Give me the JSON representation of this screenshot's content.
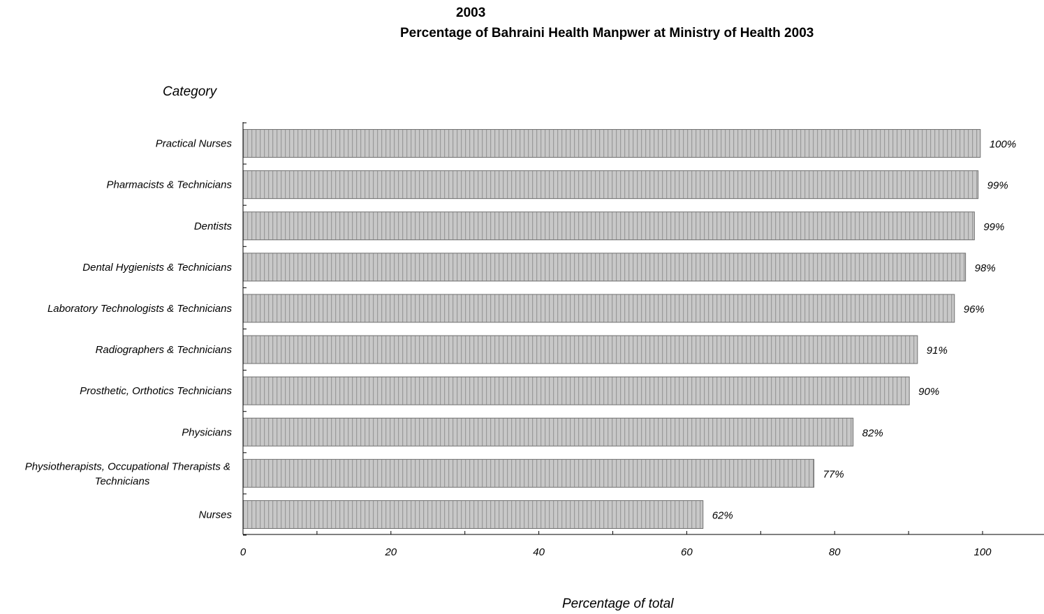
{
  "chart_data": {
    "type": "bar",
    "orientation": "horizontal",
    "year_label": "2003",
    "title": "Percentage of Bahraini Health Manpwer at Ministry of Health 2003",
    "ylabel": "Category",
    "xlabel": "Percentage of total",
    "xlim": [
      0,
      108
    ],
    "x_ticks": [
      0,
      20,
      40,
      60,
      80,
      100
    ],
    "categories": [
      "Practical Nurses",
      "Pharmacists & Technicians",
      "Dentists",
      "Dental Hygienists & Technicians",
      "Laboratory Technologists & Technicians",
      "Radiographers & Technicians",
      "Prosthetic, Orthotics Technicians",
      "Physicians",
      "Physiotherapists, Occupational Therapists & Technicians",
      "Nurses"
    ],
    "values": [
      99.7,
      99.4,
      98.9,
      97.7,
      96.2,
      91.2,
      90.1,
      82.5,
      77.2,
      62.2
    ],
    "data_labels": [
      "100%",
      "99%",
      "99%",
      "98%",
      "96%",
      "91%",
      "90%",
      "82%",
      "77%",
      "62%"
    ],
    "grid": false,
    "legend": "none",
    "bar_fill": "#c8c8c8",
    "bar_stripe": "#9a9a9a",
    "bar_stroke": "#6e6e6e"
  }
}
